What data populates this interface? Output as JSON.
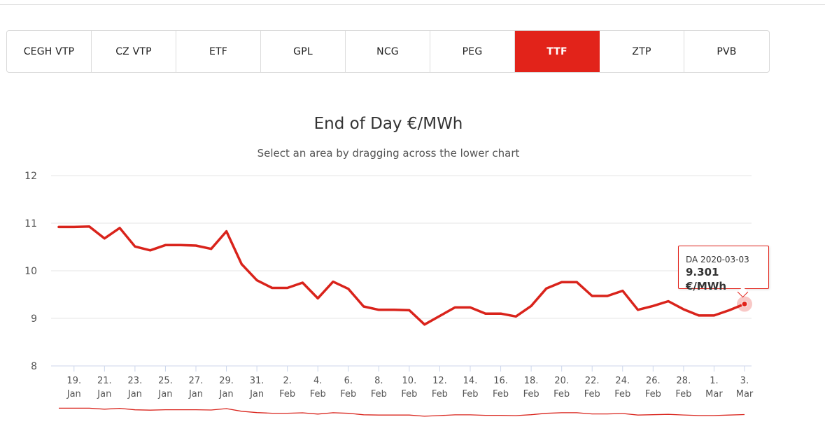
{
  "tabs": [
    {
      "label": "CEGH VTP",
      "active": false
    },
    {
      "label": "CZ VTP",
      "active": false
    },
    {
      "label": "ETF",
      "active": false
    },
    {
      "label": "GPL",
      "active": false
    },
    {
      "label": "NCG",
      "active": false
    },
    {
      "label": "PEG",
      "active": false
    },
    {
      "label": "TTF",
      "active": true
    },
    {
      "label": "ZTP",
      "active": false
    },
    {
      "label": "PVB",
      "active": false
    }
  ],
  "colors": {
    "accent": "#e2231a",
    "line": "#d9231b",
    "grid": "#e6e6e6"
  },
  "tooltip": {
    "label": "DA 2020-03-03",
    "value": "9.301 €/MWh"
  },
  "chart_data": {
    "type": "line",
    "title": "End of Day €/MWh",
    "subtitle": "Select an area by dragging across the lower chart",
    "xlabel": "",
    "ylabel": "",
    "ylim": [
      8,
      12
    ],
    "yticks": [
      8,
      9,
      10,
      11,
      12
    ],
    "xlim": [
      "2020-01-18",
      "2020-03-03"
    ],
    "grid": true,
    "x_ticks": [
      {
        "date": "2020-01-19",
        "day": "19.",
        "month": "Jan"
      },
      {
        "date": "2020-01-21",
        "day": "21.",
        "month": "Jan"
      },
      {
        "date": "2020-01-23",
        "day": "23.",
        "month": "Jan"
      },
      {
        "date": "2020-01-25",
        "day": "25.",
        "month": "Jan"
      },
      {
        "date": "2020-01-27",
        "day": "27.",
        "month": "Jan"
      },
      {
        "date": "2020-01-29",
        "day": "29.",
        "month": "Jan"
      },
      {
        "date": "2020-01-31",
        "day": "31.",
        "month": "Jan"
      },
      {
        "date": "2020-02-02",
        "day": "2.",
        "month": "Feb"
      },
      {
        "date": "2020-02-04",
        "day": "4.",
        "month": "Feb"
      },
      {
        "date": "2020-02-06",
        "day": "6.",
        "month": "Feb"
      },
      {
        "date": "2020-02-08",
        "day": "8.",
        "month": "Feb"
      },
      {
        "date": "2020-02-10",
        "day": "10.",
        "month": "Feb"
      },
      {
        "date": "2020-02-12",
        "day": "12.",
        "month": "Feb"
      },
      {
        "date": "2020-02-14",
        "day": "14.",
        "month": "Feb"
      },
      {
        "date": "2020-02-16",
        "day": "16.",
        "month": "Feb"
      },
      {
        "date": "2020-02-18",
        "day": "18.",
        "month": "Feb"
      },
      {
        "date": "2020-02-20",
        "day": "20.",
        "month": "Feb"
      },
      {
        "date": "2020-02-22",
        "day": "22.",
        "month": "Feb"
      },
      {
        "date": "2020-02-24",
        "day": "24.",
        "month": "Feb"
      },
      {
        "date": "2020-02-26",
        "day": "26.",
        "month": "Feb"
      },
      {
        "date": "2020-02-28",
        "day": "28.",
        "month": "Feb"
      },
      {
        "date": "2020-03-01",
        "day": "1.",
        "month": "Mar"
      },
      {
        "date": "2020-03-03",
        "day": "3.",
        "month": "Mar"
      }
    ],
    "series": [
      {
        "points": [
          [
            "2020-01-18",
            10.92
          ],
          [
            "2020-01-19",
            10.92
          ],
          [
            "2020-01-20",
            10.93
          ],
          [
            "2020-01-21",
            10.68
          ],
          [
            "2020-01-22",
            10.9
          ],
          [
            "2020-01-23",
            10.51
          ],
          [
            "2020-01-24",
            10.43
          ],
          [
            "2020-01-25",
            10.54
          ],
          [
            "2020-01-26",
            10.54
          ],
          [
            "2020-01-27",
            10.53
          ],
          [
            "2020-01-28",
            10.46
          ],
          [
            "2020-01-29",
            10.83
          ],
          [
            "2020-01-30",
            10.14
          ],
          [
            "2020-01-31",
            9.8
          ],
          [
            "2020-02-01",
            9.64
          ],
          [
            "2020-02-02",
            9.64
          ],
          [
            "2020-02-03",
            9.75
          ],
          [
            "2020-02-04",
            9.42
          ],
          [
            "2020-02-05",
            9.77
          ],
          [
            "2020-02-06",
            9.62
          ],
          [
            "2020-02-07",
            9.25
          ],
          [
            "2020-02-08",
            9.18
          ],
          [
            "2020-02-09",
            9.18
          ],
          [
            "2020-02-10",
            9.17
          ],
          [
            "2020-02-11",
            8.87
          ],
          [
            "2020-02-12",
            9.05
          ],
          [
            "2020-02-13",
            9.23
          ],
          [
            "2020-02-14",
            9.23
          ],
          [
            "2020-02-15",
            9.1
          ],
          [
            "2020-02-16",
            9.1
          ],
          [
            "2020-02-17",
            9.04
          ],
          [
            "2020-02-18",
            9.26
          ],
          [
            "2020-02-19",
            9.63
          ],
          [
            "2020-02-20",
            9.76
          ],
          [
            "2020-02-21",
            9.76
          ],
          [
            "2020-02-22",
            9.47
          ],
          [
            "2020-02-23",
            9.47
          ],
          [
            "2020-02-24",
            9.58
          ],
          [
            "2020-02-25",
            9.18
          ],
          [
            "2020-02-26",
            9.26
          ],
          [
            "2020-02-27",
            9.36
          ],
          [
            "2020-02-28",
            9.19
          ],
          [
            "2020-02-29",
            9.06
          ],
          [
            "2020-03-01",
            9.06
          ],
          [
            "2020-03-02",
            9.17
          ],
          [
            "2020-03-03",
            9.301
          ]
        ]
      }
    ],
    "highlight": {
      "date": "2020-03-03",
      "value": 9.301
    }
  }
}
